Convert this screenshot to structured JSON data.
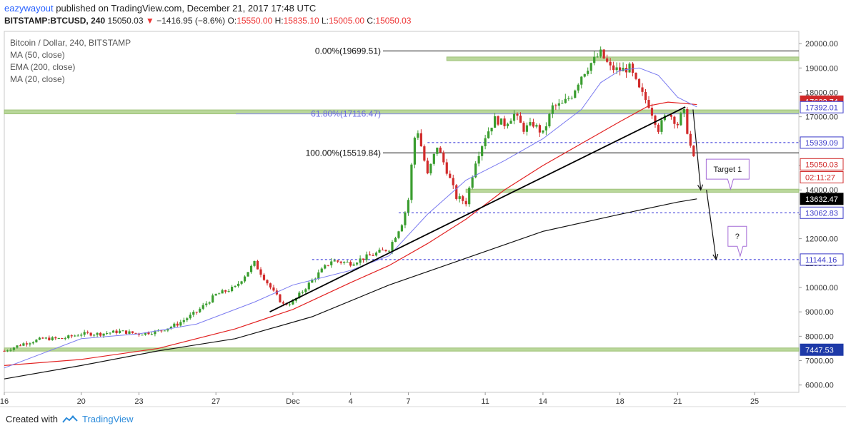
{
  "header": {
    "user": "eazywayout",
    "published_text": " published on TradingView.com, December 21, 2017 17:48 UTC",
    "symbol_line": "BITSTAMP:BTCUSD, 240",
    "last_price": "15050.03",
    "change": "−1416.95 (−8.6%)",
    "open": "15550.00",
    "high": "15835.10",
    "low": "15005.00",
    "close": "15050.03"
  },
  "legend": {
    "title": "Bitcoin / Dollar, 240, BITSTAMP",
    "studies": [
      "MA (50, close)",
      "EMA (200, close)",
      "MA (20, close)"
    ]
  },
  "footer": {
    "created_with": "Created with",
    "brand": "TradingView"
  },
  "colors": {
    "up_candle": "#3a9d2f",
    "down_candle": "#d12b2b",
    "ma50": "#e22222",
    "ema200": "#111111",
    "ma20": "#7b7bf0",
    "zone": "#b9d79a",
    "dotted_level": "#2a2ad6"
  },
  "chart_data": {
    "type": "candlestick",
    "symbol": "BITSTAMP:BTCUSD",
    "timeframe": "240",
    "ylim": [
      5700,
      20500
    ],
    "y_ticks": [
      6000,
      7000,
      8000,
      9000,
      10000,
      11000,
      12000,
      13000,
      14000,
      15000,
      16000,
      17000,
      18000,
      19000,
      20000
    ],
    "y_tick_labels": [
      "6000.00",
      "7000.00",
      "8000.00",
      "9000.00",
      "10000.00",
      "11000.00",
      "12000.00",
      "13000.00",
      "14000.00",
      "15000.00",
      "16000.00",
      "17000.00",
      "18000.00",
      "19000.00",
      "20000.00"
    ],
    "x_labels": [
      {
        "label": "16",
        "day": 16
      },
      {
        "label": "20",
        "day": 20
      },
      {
        "label": "23",
        "day": 23
      },
      {
        "label": "27",
        "day": 27
      },
      {
        "label": "Dec",
        "day": 31
      },
      {
        "label": "4",
        "day": 34
      },
      {
        "label": "7",
        "day": 37
      },
      {
        "label": "11",
        "day": 41
      },
      {
        "label": "14",
        "day": 44
      },
      {
        "label": "18",
        "day": 48
      },
      {
        "label": "21",
        "day": 51
      },
      {
        "label": "25",
        "day": 55
      }
    ],
    "x_range_days": [
      16,
      57.3
    ],
    "price_path": [
      [
        16,
        7400
      ],
      [
        17,
        7700
      ],
      [
        18,
        7900
      ],
      [
        19,
        7900
      ],
      [
        20,
        8100
      ],
      [
        21,
        8100
      ],
      [
        22,
        8200
      ],
      [
        23,
        8100
      ],
      [
        24,
        8200
      ],
      [
        25,
        8500
      ],
      [
        26,
        9000
      ],
      [
        27,
        9700
      ],
      [
        28,
        10000
      ],
      [
        29,
        11000
      ],
      [
        30,
        9800
      ],
      [
        30.5,
        9300
      ],
      [
        31,
        9400
      ],
      [
        32,
        10300
      ],
      [
        33,
        11100
      ],
      [
        34,
        11000
      ],
      [
        35,
        11300
      ],
      [
        36,
        11600
      ],
      [
        36.7,
        12700
      ],
      [
        37,
        13600
      ],
      [
        37.3,
        16100
      ],
      [
        37.5,
        16400
      ],
      [
        38,
        14600
      ],
      [
        38.5,
        15800
      ],
      [
        39,
        14800
      ],
      [
        39.5,
        13700
      ],
      [
        40,
        13500
      ],
      [
        40.5,
        15200
      ],
      [
        41,
        16200
      ],
      [
        41.5,
        16900
      ],
      [
        42,
        16700
      ],
      [
        42.5,
        17100
      ],
      [
        43,
        16500
      ],
      [
        43.5,
        16700
      ],
      [
        44,
        16300
      ],
      [
        44.5,
        17400
      ],
      [
        45,
        17500
      ],
      [
        45.5,
        17900
      ],
      [
        46,
        18700
      ],
      [
        46.5,
        19200
      ],
      [
        47,
        19600
      ],
      [
        47.5,
        19000
      ],
      [
        48,
        18900
      ],
      [
        48.5,
        19000
      ],
      [
        49,
        18100
      ],
      [
        49.5,
        17500
      ],
      [
        50,
        16500
      ],
      [
        50.5,
        17200
      ],
      [
        51,
        16700
      ],
      [
        51.3,
        17300
      ],
      [
        51.6,
        16000
      ],
      [
        51.9,
        15050
      ]
    ],
    "ma20": [
      [
        16,
        6700
      ],
      [
        18,
        7300
      ],
      [
        20,
        7900
      ],
      [
        23,
        8100
      ],
      [
        26,
        8500
      ],
      [
        29,
        9400
      ],
      [
        31,
        10100
      ],
      [
        34,
        10700
      ],
      [
        36,
        11300
      ],
      [
        38,
        13000
      ],
      [
        40,
        14400
      ],
      [
        42,
        15200
      ],
      [
        44,
        16100
      ],
      [
        46,
        17300
      ],
      [
        47,
        18400
      ],
      [
        48,
        18900
      ],
      [
        49,
        19000
      ],
      [
        50,
        18700
      ],
      [
        51,
        17800
      ],
      [
        52,
        17400
      ]
    ],
    "ma50": [
      [
        16,
        6800
      ],
      [
        20,
        7050
      ],
      [
        24,
        7500
      ],
      [
        28,
        8300
      ],
      [
        31,
        9100
      ],
      [
        34,
        10200
      ],
      [
        36,
        10900
      ],
      [
        38,
        11800
      ],
      [
        40,
        12800
      ],
      [
        42,
        14000
      ],
      [
        44,
        15000
      ],
      [
        46,
        15900
      ],
      [
        48,
        16800
      ],
      [
        49.5,
        17450
      ],
      [
        50.5,
        17600
      ],
      [
        52,
        17500
      ]
    ],
    "ema200": [
      [
        16,
        6250
      ],
      [
        20,
        6800
      ],
      [
        24,
        7400
      ],
      [
        28,
        7900
      ],
      [
        32,
        8800
      ],
      [
        36,
        10100
      ],
      [
        40,
        11200
      ],
      [
        44,
        12300
      ],
      [
        48,
        13000
      ],
      [
        51,
        13500
      ],
      [
        52,
        13632
      ]
    ],
    "fibonacci": [
      {
        "label": "0.00%(19699.51)",
        "price": 19699.51
      },
      {
        "label": "61.80%(17116.47)",
        "price": 17116.47
      },
      {
        "label": "100.00%(15519.84)",
        "price": 15519.84
      }
    ],
    "zones": [
      {
        "low": 19300,
        "high": 19450,
        "from_day": 39
      },
      {
        "low": 17120,
        "high": 17280,
        "from_day": 16
      },
      {
        "low": 13900,
        "high": 14030,
        "from_day": 40
      },
      {
        "low": 7390,
        "high": 7520,
        "from_day": 16
      }
    ],
    "dotted_levels": [
      {
        "price": 15939.09,
        "from_day": 38
      },
      {
        "price": 13062.83,
        "from_day": 36.5
      },
      {
        "price": 11144.16,
        "from_day": 32
      }
    ],
    "trendline": [
      [
        29.8,
        9000
      ],
      [
        51.4,
        17400
      ]
    ],
    "projection_arrows": [
      [
        [
          51.8,
          17300
        ],
        [
          52.2,
          14000
        ]
      ],
      [
        [
          52.5,
          14000
        ],
        [
          53,
          11150
        ]
      ]
    ],
    "callouts": [
      {
        "text": "Target 1",
        "day": 53.6,
        "price": 14850
      },
      {
        "text": "?",
        "day": 54.1,
        "price": 12100
      }
    ],
    "price_labels": [
      {
        "text": "17622.74",
        "price": 17622.74,
        "bg": "#d12b2b",
        "fg": "#ffffff"
      },
      {
        "text": "17392.01",
        "price": 17392.01,
        "bg": "#ffffff",
        "fg": "#3a3ac8",
        "border": "#3a3ac8"
      },
      {
        "text": "15939.09",
        "price": 15939.09,
        "bg": "#ffffff",
        "fg": "#3a3ac8",
        "border": "#3a3ac8"
      },
      {
        "text": "15050.03",
        "price": 15050.03,
        "bg": "#ffffff",
        "fg": "#d12b2b",
        "border": "#d12b2b"
      },
      {
        "text": "02:11:27",
        "price": 14520,
        "bg": "#ffffff",
        "fg": "#d12b2b",
        "border": "#d12b2b"
      },
      {
        "text": "13632.47",
        "price": 13632.47,
        "bg": "#000000",
        "fg": "#ffffff"
      },
      {
        "text": "13062.83",
        "price": 13062.83,
        "bg": "#ffffff",
        "fg": "#3a3ac8",
        "border": "#3a3ac8"
      },
      {
        "text": "11144.16",
        "price": 11144.16,
        "bg": "#ffffff",
        "fg": "#3a3ac8",
        "border": "#3a3ac8"
      },
      {
        "text": "7447.53",
        "price": 7447.53,
        "bg": "#1e3aa8",
        "fg": "#ffffff"
      }
    ]
  }
}
